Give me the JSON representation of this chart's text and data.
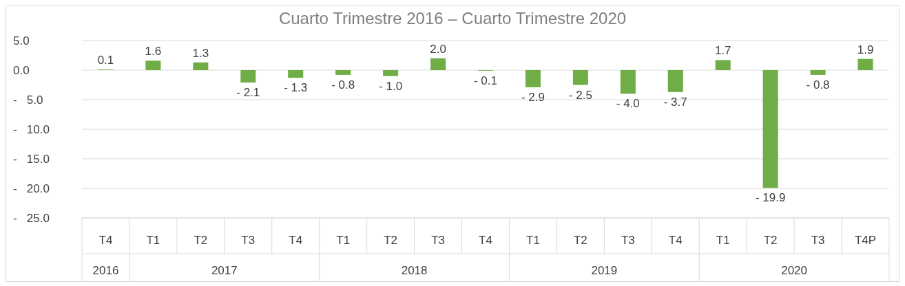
{
  "chart_data": {
    "type": "bar",
    "title": "Cuarto Trimestre 2016 – Cuarto Trimestre 2020",
    "categories": [
      "T4",
      "T1",
      "T2",
      "T3",
      "T4",
      "T1",
      "T2",
      "T3",
      "T4",
      "T1",
      "T2",
      "T3",
      "T4",
      "T1",
      "T2",
      "T3",
      "T4P"
    ],
    "values": [
      0.1,
      1.6,
      1.3,
      -2.1,
      -1.3,
      -0.8,
      -1.0,
      2.0,
      -0.1,
      -2.9,
      -2.5,
      -4.0,
      -3.7,
      1.7,
      -19.9,
      -0.8,
      1.9
    ],
    "value_labels": [
      "0.1",
      "1.6",
      "1.3",
      "-  2.1",
      "-  1.3",
      "-  0.8",
      "-  1.0",
      "2.0",
      "-  0.1",
      "-  2.9",
      "-  2.5",
      "-  4.0",
      "-  3.7",
      "1.7",
      "-  19.9",
      "-  0.8",
      "1.9"
    ],
    "color": "#70ad47",
    "ylim": [
      -25,
      5
    ],
    "yticks": [
      {
        "value": 5,
        "label": "5.0"
      },
      {
        "value": 0,
        "label": "0.0"
      },
      {
        "value": -5,
        "label": "-   5.0"
      },
      {
        "value": -10,
        "label": "-   10.0"
      },
      {
        "value": -15,
        "label": "-   15.0"
      },
      {
        "value": -20,
        "label": "-   20.0"
      },
      {
        "value": -25,
        "label": "-   25.0"
      }
    ],
    "grid": "y",
    "annotations": [
      "2016",
      "2017",
      "2018",
      "2019",
      "2020"
    ]
  }
}
